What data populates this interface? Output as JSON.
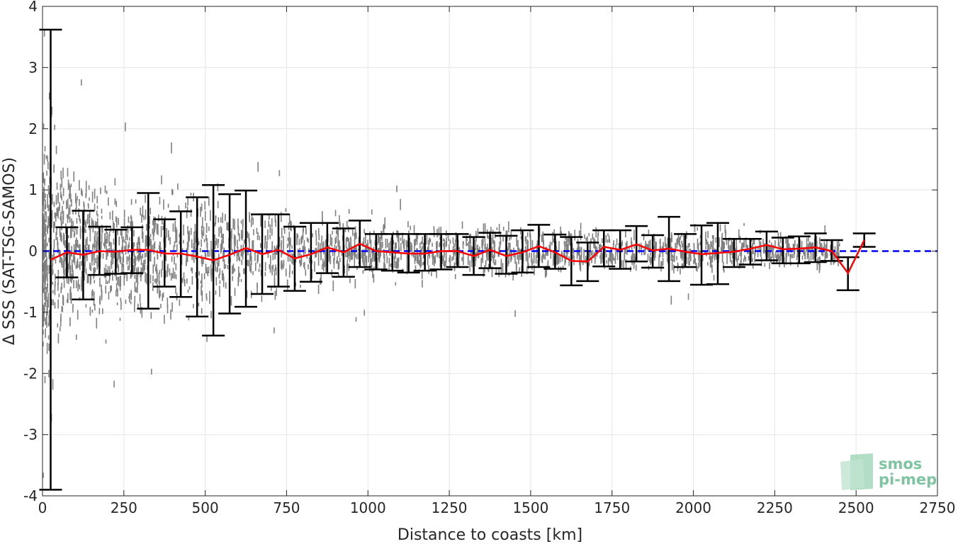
{
  "chart_data": {
    "type": "scatter",
    "title": "",
    "xlabel": "Distance to coasts [km]",
    "ylabel": "Δ SSS (SAT-TSG-SAMOS)",
    "xlim": [
      0,
      2750
    ],
    "ylim": [
      -4,
      4
    ],
    "xticks": [
      0,
      250,
      500,
      750,
      1000,
      1250,
      1500,
      1750,
      2000,
      2250,
      2500,
      2750
    ],
    "yticks": [
      -4,
      -3,
      -2,
      -1,
      0,
      1,
      2,
      3,
      4
    ],
    "xtick_labels": [
      "0",
      "250",
      "500",
      "750",
      "1000",
      "1250",
      "1500",
      "1750",
      "2000",
      "2250",
      "2500",
      "2750"
    ],
    "ytick_labels": [
      "-4",
      "-3",
      "-2",
      "-1",
      "0",
      "1",
      "2",
      "3",
      "4"
    ],
    "grid": true,
    "reference_line": {
      "y": 0,
      "color": "#0000ff",
      "style": "dashed"
    },
    "scatter_color": "#808080",
    "mean_color": "#ff0000",
    "errorbar_color": "#000000",
    "bins": {
      "x": [
        25,
        75,
        125,
        175,
        225,
        275,
        325,
        375,
        425,
        475,
        525,
        575,
        625,
        675,
        725,
        775,
        825,
        875,
        925,
        975,
        1025,
        1075,
        1125,
        1175,
        1225,
        1275,
        1325,
        1375,
        1425,
        1475,
        1525,
        1575,
        1625,
        1675,
        1725,
        1775,
        1825,
        1875,
        1925,
        1975,
        2025,
        2075,
        2125,
        2175,
        2225,
        2275,
        2325,
        2375,
        2425,
        2475,
        2525
      ],
      "mean": [
        -0.14,
        -0.02,
        -0.06,
        0.0,
        -0.01,
        0.02,
        0.02,
        -0.04,
        -0.04,
        -0.09,
        -0.15,
        -0.06,
        0.05,
        -0.05,
        0.02,
        -0.12,
        -0.05,
        0.06,
        -0.02,
        0.12,
        0.0,
        -0.02,
        -0.04,
        -0.04,
        0.0,
        0.0,
        -0.08,
        0.02,
        -0.08,
        -0.02,
        0.08,
        -0.02,
        -0.16,
        -0.17,
        0.07,
        0.02,
        0.11,
        0.01,
        0.04,
        -0.01,
        -0.05,
        -0.03,
        -0.01,
        0.04,
        0.1,
        0.03,
        0.04,
        0.06,
        0.0,
        -0.36,
        0.18
      ],
      "upper": [
        3.62,
        0.39,
        0.66,
        0.4,
        0.35,
        0.39,
        0.95,
        0.52,
        0.65,
        0.88,
        1.08,
        0.93,
        0.99,
        0.6,
        0.6,
        0.4,
        0.46,
        0.46,
        0.37,
        0.5,
        0.28,
        0.28,
        0.28,
        0.28,
        0.28,
        0.28,
        0.23,
        0.3,
        0.25,
        0.34,
        0.43,
        0.27,
        0.23,
        0.14,
        0.34,
        0.34,
        0.41,
        0.26,
        0.56,
        0.28,
        0.42,
        0.46,
        0.2,
        0.2,
        0.32,
        0.22,
        0.24,
        0.29,
        0.18,
        -0.1,
        0.29
      ],
      "lower": [
        -3.9,
        -0.43,
        -0.79,
        -0.39,
        -0.37,
        -0.36,
        -0.94,
        -0.58,
        -0.75,
        -1.07,
        -1.38,
        -1.02,
        -0.91,
        -0.7,
        -0.58,
        -0.65,
        -0.5,
        -0.36,
        -0.42,
        -0.26,
        -0.3,
        -0.32,
        -0.35,
        -0.32,
        -0.3,
        -0.26,
        -0.39,
        -0.28,
        -0.37,
        -0.35,
        -0.26,
        -0.29,
        -0.56,
        -0.49,
        -0.25,
        -0.29,
        -0.17,
        -0.27,
        -0.49,
        -0.26,
        -0.55,
        -0.54,
        -0.26,
        -0.22,
        -0.15,
        -0.2,
        -0.2,
        -0.18,
        -0.16,
        -0.64,
        0.07
      ]
    },
    "scatter_envelope": {
      "x": [
        0,
        100,
        250,
        500,
        750,
        1000,
        1250,
        1500,
        1750,
        2000,
        2250,
        2450
      ],
      "spread": [
        1.6,
        0.95,
        0.8,
        0.7,
        0.5,
        0.35,
        0.3,
        0.3,
        0.28,
        0.28,
        0.18,
        0.15
      ]
    }
  },
  "logo": {
    "line1": "smos",
    "line2": "pi-mep"
  }
}
